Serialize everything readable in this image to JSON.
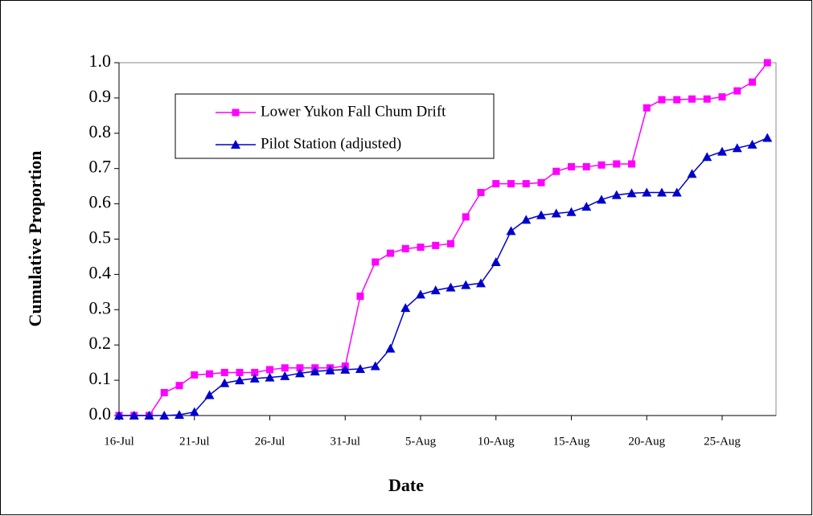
{
  "chart_data": {
    "type": "line",
    "x_label": "Date",
    "y_label": "Cumulative Proportion",
    "categories": [
      "16-Jul",
      null,
      null,
      null,
      null,
      "21-Jul",
      null,
      null,
      null,
      null,
      "26-Jul",
      null,
      null,
      null,
      null,
      "31-Jul",
      null,
      null,
      null,
      null,
      "5-Aug",
      null,
      null,
      null,
      null,
      "10-Aug",
      null,
      null,
      null,
      null,
      "15-Aug",
      null,
      null,
      null,
      null,
      "20-Aug",
      null,
      null,
      null,
      null,
      "25-Aug",
      null,
      null,
      null
    ],
    "series": [
      {
        "name": "Lower Yukon Fall Chum Drift",
        "color": "#ff00ff",
        "marker": "square",
        "values": [
          0,
          0,
          0,
          0.065,
          0.085,
          0.115,
          0.118,
          0.122,
          0.122,
          0.122,
          0.13,
          0.135,
          0.135,
          0.135,
          0.135,
          0.14,
          0.338,
          0.435,
          0.46,
          0.473,
          0.477,
          0.482,
          0.487,
          0.563,
          0.632,
          0.657,
          0.657,
          0.657,
          0.66,
          0.692,
          0.705,
          0.705,
          0.71,
          0.713,
          0.713,
          0.872,
          0.895,
          0.895,
          0.897,
          0.897,
          0.903,
          0.92,
          0.945,
          1.0
        ]
      },
      {
        "name": "Pilot Station (adjusted)",
        "color": "#0000cc",
        "marker": "triangle",
        "values": [
          0,
          0,
          0,
          0,
          0.002,
          0.01,
          0.058,
          0.092,
          0.1,
          0.105,
          0.108,
          0.112,
          0.12,
          0.125,
          0.128,
          0.13,
          0.132,
          0.14,
          0.19,
          0.305,
          0.343,
          0.355,
          0.363,
          0.37,
          0.375,
          0.435,
          0.523,
          0.555,
          0.568,
          0.573,
          0.577,
          0.592,
          0.612,
          0.625,
          0.63,
          0.632,
          0.632,
          0.632,
          0.685,
          0.733,
          0.748,
          0.758,
          0.768,
          0.787
        ]
      }
    ],
    "ylim": [
      0,
      1
    ],
    "yticks": [
      {
        "value": 0,
        "label": "0.0"
      },
      0.1,
      0.2,
      0.3,
      0.4,
      0.5,
      0.6,
      0.7,
      0.8,
      0.9,
      {
        "value": 1,
        "label": "1.0"
      }
    ],
    "legend": "upper left"
  }
}
